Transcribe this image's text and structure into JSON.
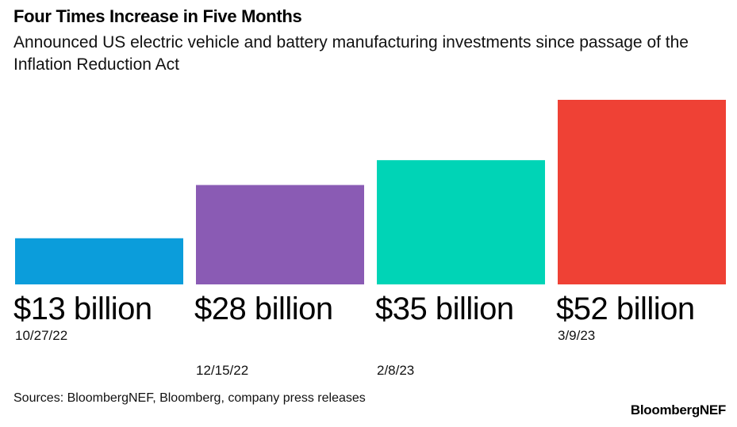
{
  "header": {
    "title": "Four Times Increase in Five Months",
    "subtitle": "Announced US electric vehicle and battery manufacturing investments since passage of the Inflation Reduction Act"
  },
  "chart_data": {
    "type": "bar",
    "categories": [
      "10/27/22",
      "12/15/22",
      "2/8/23",
      "3/9/23"
    ],
    "values": [
      13,
      28,
      35,
      52
    ],
    "data_labels": [
      "$13 billion",
      "$28 billion",
      "$35 billion",
      "$52 billion"
    ],
    "colors": [
      "#0b9ddb",
      "#8a5bb4",
      "#00d4b6",
      "#ef4135"
    ],
    "unit": "billion USD",
    "ylim": [
      0,
      52
    ],
    "grid": false,
    "legend": "none"
  },
  "footer": {
    "source": "Sources: BloombergNEF, Bloomberg, company press releases",
    "brand": "BloombergNEF"
  }
}
